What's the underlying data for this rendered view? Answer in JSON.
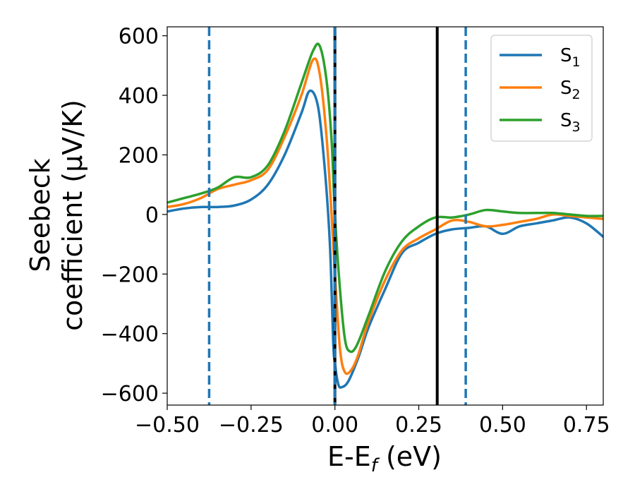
{
  "chart_data": {
    "type": "line",
    "xlabel": "E-E",
    "xlabel_sub": "f",
    "xlabel_unit": " (eV)",
    "ylabel_line1": "Seebeck",
    "ylabel_line2": "coefficient  (μV/K)",
    "xlim": [
      -0.5,
      0.8
    ],
    "ylim": [
      -640,
      630
    ],
    "x_ticks": [
      -0.5,
      -0.25,
      0.0,
      0.25,
      0.5,
      0.75
    ],
    "x_tick_labels": [
      "−0.50",
      "−0.25",
      "0.00",
      "0.25",
      "0.50",
      "0.75"
    ],
    "y_ticks": [
      -600,
      -400,
      -200,
      0,
      200,
      400,
      600
    ],
    "y_tick_labels": [
      "−600",
      "−400",
      "−200",
      "0",
      "200",
      "400",
      "600"
    ],
    "grid": false,
    "legend_position": "top-right",
    "vertical_lines": [
      {
        "x": -0.375,
        "style": "dashed",
        "color": "#1f77b4"
      },
      {
        "x": 0.0,
        "style": "solid",
        "color": "#000000"
      },
      {
        "x": 0.0,
        "style": "dashed",
        "color": "#1f77b4"
      },
      {
        "x": 0.305,
        "style": "solid",
        "color": "#000000"
      },
      {
        "x": 0.39,
        "style": "dashed",
        "color": "#1f77b4"
      }
    ],
    "series": [
      {
        "name": "S",
        "sub": "1",
        "color": "#1f77b4",
        "points": [
          [
            -0.5,
            10
          ],
          [
            -0.45,
            20
          ],
          [
            -0.4,
            25
          ],
          [
            -0.35,
            25
          ],
          [
            -0.3,
            30
          ],
          [
            -0.25,
            50
          ],
          [
            -0.2,
            100
          ],
          [
            -0.15,
            200
          ],
          [
            -0.1,
            340
          ],
          [
            -0.075,
            415
          ],
          [
            -0.05,
            360
          ],
          [
            -0.03,
            150
          ],
          [
            -0.015,
            -100
          ],
          [
            -0.005,
            -430
          ],
          [
            0.0,
            -500
          ],
          [
            0.01,
            -570
          ],
          [
            0.02,
            -580
          ],
          [
            0.04,
            -560
          ],
          [
            0.07,
            -480
          ],
          [
            0.1,
            -380
          ],
          [
            0.15,
            -250
          ],
          [
            0.2,
            -130
          ],
          [
            0.25,
            -95
          ],
          [
            0.3,
            -65
          ],
          [
            0.35,
            -50
          ],
          [
            0.4,
            -45
          ],
          [
            0.45,
            -40
          ],
          [
            0.5,
            -65
          ],
          [
            0.55,
            -40
          ],
          [
            0.6,
            -30
          ],
          [
            0.65,
            -20
          ],
          [
            0.7,
            -10
          ],
          [
            0.75,
            -30
          ],
          [
            0.8,
            -75
          ]
        ]
      },
      {
        "name": "S",
        "sub": "2",
        "color": "#ff7f0e",
        "points": [
          [
            -0.5,
            25
          ],
          [
            -0.45,
            35
          ],
          [
            -0.4,
            55
          ],
          [
            -0.35,
            85
          ],
          [
            -0.3,
            100
          ],
          [
            -0.25,
            115
          ],
          [
            -0.2,
            150
          ],
          [
            -0.15,
            260
          ],
          [
            -0.1,
            400
          ],
          [
            -0.065,
            520
          ],
          [
            -0.045,
            470
          ],
          [
            -0.025,
            260
          ],
          [
            -0.01,
            0
          ],
          [
            0.0,
            -200
          ],
          [
            0.015,
            -450
          ],
          [
            0.03,
            -530
          ],
          [
            0.05,
            -520
          ],
          [
            0.07,
            -470
          ],
          [
            0.1,
            -360
          ],
          [
            0.15,
            -220
          ],
          [
            0.2,
            -120
          ],
          [
            0.25,
            -80
          ],
          [
            0.3,
            -50
          ],
          [
            0.35,
            -20
          ],
          [
            0.4,
            -25
          ],
          [
            0.45,
            -40
          ],
          [
            0.5,
            -35
          ],
          [
            0.55,
            -25
          ],
          [
            0.6,
            -15
          ],
          [
            0.65,
            0
          ],
          [
            0.7,
            -5
          ],
          [
            0.75,
            -10
          ],
          [
            0.8,
            -15
          ]
        ]
      },
      {
        "name": "S",
        "sub": "3",
        "color": "#2ca02c",
        "points": [
          [
            -0.5,
            40
          ],
          [
            -0.45,
            55
          ],
          [
            -0.4,
            70
          ],
          [
            -0.35,
            90
          ],
          [
            -0.3,
            125
          ],
          [
            -0.25,
            125
          ],
          [
            -0.2,
            165
          ],
          [
            -0.15,
            280
          ],
          [
            -0.1,
            440
          ],
          [
            -0.065,
            550
          ],
          [
            -0.045,
            565
          ],
          [
            -0.025,
            450
          ],
          [
            -0.01,
            250
          ],
          [
            0.0,
            0
          ],
          [
            0.015,
            -250
          ],
          [
            0.03,
            -420
          ],
          [
            0.045,
            -460
          ],
          [
            0.065,
            -440
          ],
          [
            0.1,
            -340
          ],
          [
            0.15,
            -190
          ],
          [
            0.2,
            -90
          ],
          [
            0.25,
            -40
          ],
          [
            0.3,
            -10
          ],
          [
            0.35,
            -10
          ],
          [
            0.4,
            0
          ],
          [
            0.45,
            15
          ],
          [
            0.5,
            10
          ],
          [
            0.55,
            5
          ],
          [
            0.6,
            5
          ],
          [
            0.65,
            5
          ],
          [
            0.7,
            0
          ],
          [
            0.75,
            -5
          ],
          [
            0.8,
            -5
          ]
        ]
      }
    ]
  }
}
